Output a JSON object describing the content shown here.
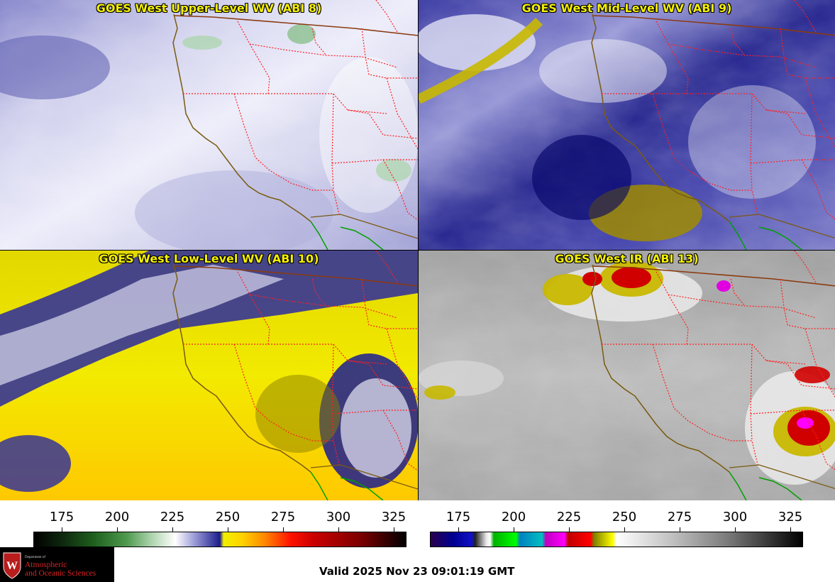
{
  "panels": [
    {
      "title": "GOES West Upper-Level WV (ABI 8)"
    },
    {
      "title": "GOES West Mid-Level WV (ABI 9)"
    },
    {
      "title": "GOES West Low-Level WV (ABI 10)"
    },
    {
      "title": "GOES West IR (ABI 13)"
    }
  ],
  "colorbars": {
    "wv": {
      "name": "water-vapor",
      "ticks": [
        "175",
        "200",
        "225",
        "250",
        "275",
        "300",
        "325"
      ]
    },
    "ir": {
      "name": "infrared",
      "ticks": [
        "175",
        "200",
        "225",
        "250",
        "275",
        "300",
        "325"
      ]
    }
  },
  "valid_time": "Valid 2025 Nov 23 09:01:19 GMT",
  "logo": {
    "dept_line1": "Department of",
    "dept_line2": "Atmospheric",
    "dept_line3": "and Oceanic Sciences"
  },
  "colors": {
    "title_text": "#f5f000",
    "state_borders": "#ff2020",
    "coastline": "#7a5a10",
    "mexico_border": "#00a000"
  }
}
